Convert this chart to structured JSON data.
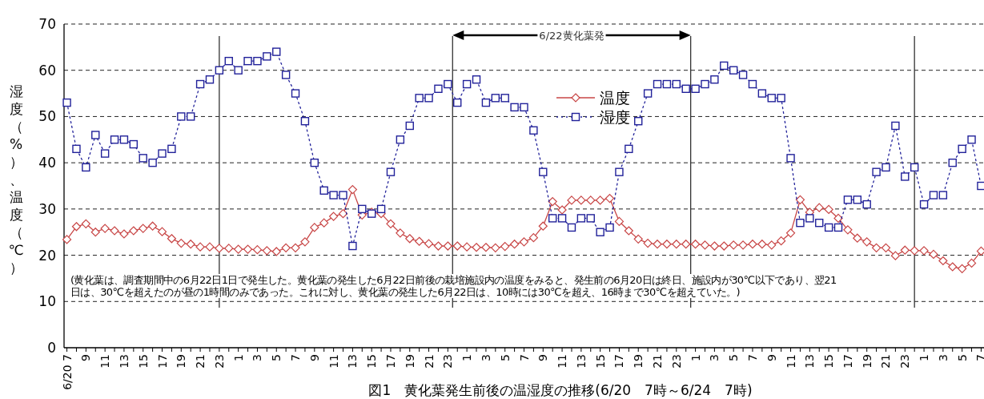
{
  "chart_data": {
    "type": "line",
    "title": "図1　黄化葉発生前後の温湿度の推移(6/20　7時～6/24　7時)",
    "ylabel": "湿度（%）、温度（℃）",
    "x": [
      "--06-20T07:00",
      "--06-20T08:00",
      "--06-20T09:00",
      "--06-20T10:00",
      "--06-20T11:00",
      "--06-20T12:00",
      "--06-20T13:00",
      "--06-20T14:00",
      "--06-20T15:00",
      "--06-20T16:00",
      "--06-20T17:00",
      "--06-20T18:00",
      "--06-20T19:00",
      "--06-20T20:00",
      "--06-20T21:00",
      "--06-20T22:00",
      "--06-20T23:00",
      "--06-21T00:00",
      "--06-21T01:00",
      "--06-21T02:00",
      "--06-21T03:00",
      "--06-21T04:00",
      "--06-21T05:00",
      "--06-21T06:00",
      "--06-21T07:00",
      "--06-21T08:00",
      "--06-21T09:00",
      "--06-21T10:00",
      "--06-21T11:00",
      "--06-21T12:00",
      "--06-21T13:00",
      "--06-21T14:00",
      "--06-21T15:00",
      "--06-21T16:00",
      "--06-21T17:00",
      "--06-21T18:00",
      "--06-21T19:00",
      "--06-21T20:00",
      "--06-21T21:00",
      "--06-21T22:00",
      "--06-21T23:00",
      "--06-22T00:00",
      "--06-22T01:00",
      "--06-22T02:00",
      "--06-22T03:00",
      "--06-22T04:00",
      "--06-22T05:00",
      "--06-22T06:00",
      "--06-22T07:00",
      "--06-22T08:00",
      "--06-22T09:00",
      "--06-22T10:00",
      "--06-22T11:00",
      "--06-22T12:00",
      "--06-22T13:00",
      "--06-22T14:00",
      "--06-22T15:00",
      "--06-22T16:00",
      "--06-22T17:00",
      "--06-22T18:00",
      "--06-22T19:00",
      "--06-22T20:00",
      "--06-22T21:00",
      "--06-22T22:00",
      "--06-22T23:00",
      "--06-23T00:00",
      "--06-23T01:00",
      "--06-23T02:00",
      "--06-23T03:00",
      "--06-23T04:00",
      "--06-23T05:00",
      "--06-23T06:00",
      "--06-23T07:00",
      "--06-23T08:00",
      "--06-23T09:00",
      "--06-23T10:00",
      "--06-23T11:00",
      "--06-23T12:00",
      "--06-23T13:00",
      "--06-23T14:00",
      "--06-23T15:00",
      "--06-23T16:00",
      "--06-23T17:00",
      "--06-23T18:00",
      "--06-23T19:00",
      "--06-23T20:00",
      "--06-23T21:00",
      "--06-23T22:00",
      "--06-23T23:00",
      "--06-24T00:00",
      "--06-24T01:00",
      "--06-24T02:00",
      "--06-24T03:00",
      "--06-24T04:00",
      "--06-24T05:00",
      "--06-24T06:00",
      "--06-24T07:00"
    ],
    "series": [
      {
        "name": "温度",
        "color": "#c84646",
        "marker": "diamond",
        "line_style": "solid",
        "values": [
          23.4,
          26.2,
          26.8,
          25.0,
          25.8,
          25.3,
          24.6,
          25.3,
          25.8,
          26.3,
          25.1,
          23.6,
          22.6,
          22.4,
          21.8,
          21.8,
          21.5,
          21.5,
          21.3,
          21.3,
          21.2,
          21.0,
          20.8,
          21.6,
          21.6,
          22.9,
          26.0,
          27.0,
          28.4,
          29.0,
          34.2,
          28.7,
          29.3,
          29.0,
          26.8,
          24.8,
          23.6,
          23.0,
          22.5,
          22.0,
          22.0,
          22.0,
          21.8,
          21.7,
          21.7,
          21.6,
          21.9,
          22.4,
          22.9,
          23.8,
          26.3,
          31.6,
          29.8,
          31.9,
          31.9,
          31.9,
          31.9,
          32.3,
          27.3,
          25.3,
          23.5,
          22.6,
          22.4,
          22.4,
          22.4,
          22.4,
          22.4,
          22.2,
          22.0,
          22.0,
          22.2,
          22.2,
          22.4,
          22.4,
          22.2,
          23.1,
          24.8,
          32.0,
          29.3,
          30.3,
          29.9,
          28.0,
          25.5,
          23.7,
          22.9,
          21.6,
          21.6,
          19.9,
          21.1,
          21.0,
          21.0,
          20.2,
          18.8,
          17.5,
          17.1,
          18.3,
          20.9
        ]
      },
      {
        "name": "湿度",
        "color": "#22229a",
        "marker": "square",
        "line_style": "dotted",
        "values": [
          53,
          43,
          39,
          46,
          42,
          45,
          45,
          44,
          41,
          40,
          42,
          43,
          50,
          50,
          57,
          58,
          60,
          62,
          60,
          62,
          62,
          63,
          64,
          59,
          55,
          49,
          40,
          34,
          33,
          33,
          22,
          30,
          29,
          30,
          38,
          45,
          48,
          54,
          54,
          56,
          57,
          53,
          57,
          58,
          53,
          54,
          54,
          52,
          52,
          47,
          38,
          28,
          28,
          26,
          28,
          28,
          25,
          26,
          38,
          43,
          49,
          55,
          57,
          57,
          57,
          56,
          56,
          57,
          58,
          61,
          60,
          59,
          57,
          55,
          54,
          54,
          41,
          27,
          28,
          27,
          26,
          26,
          32,
          32,
          31,
          38,
          39,
          48,
          37,
          39,
          31,
          33,
          33,
          40,
          43,
          45,
          35
        ]
      }
    ],
    "xlim": [
      "--06-20T06:42",
      "--06-24T07:18"
    ],
    "xticks": [
      {
        "value": "--06-20T07:00",
        "label": "6/20 7"
      },
      {
        "value": "--06-20T08:00",
        "label": null
      },
      {
        "value": "--06-20T09:00",
        "label": "9"
      },
      {
        "value": "--06-20T10:00",
        "label": null
      },
      {
        "value": "--06-20T11:00",
        "label": "11"
      },
      {
        "value": "--06-20T12:00",
        "label": null
      },
      {
        "value": "--06-20T13:00",
        "label": "13"
      },
      {
        "value": "--06-20T14:00",
        "label": null
      },
      {
        "value": "--06-20T15:00",
        "label": "15"
      },
      {
        "value": "--06-20T16:00",
        "label": null
      },
      {
        "value": "--06-20T17:00",
        "label": "17"
      },
      {
        "value": "--06-20T18:00",
        "label": null
      },
      {
        "value": "--06-20T19:00",
        "label": "19"
      },
      {
        "value": "--06-20T20:00",
        "label": null
      },
      {
        "value": "--06-20T21:00",
        "label": "21"
      },
      {
        "value": "--06-20T22:00",
        "label": null
      },
      {
        "value": "--06-20T23:00",
        "label": "23"
      },
      {
        "value": "--06-21T00:00",
        "label": null
      },
      {
        "value": "--06-21T01:00",
        "label": "1"
      },
      {
        "value": "--06-21T02:00",
        "label": null
      },
      {
        "value": "--06-21T03:00",
        "label": "3"
      },
      {
        "value": "--06-21T04:00",
        "label": null
      },
      {
        "value": "--06-21T05:00",
        "label": "5"
      },
      {
        "value": "--06-21T06:00",
        "label": null
      },
      {
        "value": "--06-21T07:00",
        "label": "7"
      },
      {
        "value": "--06-21T08:00",
        "label": null
      },
      {
        "value": "--06-21T09:00",
        "label": "9"
      },
      {
        "value": "--06-21T10:00",
        "label": null
      },
      {
        "value": "--06-21T11:00",
        "label": "11"
      },
      {
        "value": "--06-21T12:00",
        "label": null
      },
      {
        "value": "--06-21T13:00",
        "label": "13"
      },
      {
        "value": "--06-21T14:00",
        "label": null
      },
      {
        "value": "--06-21T15:00",
        "label": "15"
      },
      {
        "value": "--06-21T16:00",
        "label": null
      },
      {
        "value": "--06-21T17:00",
        "label": "17"
      },
      {
        "value": "--06-21T18:00",
        "label": null
      },
      {
        "value": "--06-21T19:00",
        "label": "19"
      },
      {
        "value": "--06-21T20:00",
        "label": null
      },
      {
        "value": "--06-21T21:00",
        "label": "21"
      },
      {
        "value": "--06-21T22:00",
        "label": null
      },
      {
        "value": "--06-21T23:00",
        "label": "23"
      },
      {
        "value": "--06-22T00:00",
        "label": null
      },
      {
        "value": "--06-22T01:00",
        "label": "1"
      },
      {
        "value": "--06-22T02:00",
        "label": null
      },
      {
        "value": "--06-22T03:00",
        "label": "3"
      },
      {
        "value": "--06-22T04:00",
        "label": null
      },
      {
        "value": "--06-22T05:00",
        "label": "5"
      },
      {
        "value": "--06-22T06:00",
        "label": null
      },
      {
        "value": "--06-22T07:00",
        "label": "7"
      },
      {
        "value": "--06-22T08:00",
        "label": null
      },
      {
        "value": "--06-22T09:00",
        "label": "9"
      },
      {
        "value": "--06-22T10:00",
        "label": null
      },
      {
        "value": "--06-22T11:00",
        "label": "11"
      },
      {
        "value": "--06-22T12:00",
        "label": null
      },
      {
        "value": "--06-22T13:00",
        "label": "13"
      },
      {
        "value": "--06-22T14:00",
        "label": null
      },
      {
        "value": "--06-22T15:00",
        "label": "15"
      },
      {
        "value": "--06-22T16:00",
        "label": null
      },
      {
        "value": "--06-22T17:00",
        "label": "17"
      },
      {
        "value": "--06-22T18:00",
        "label": null
      },
      {
        "value": "--06-22T19:00",
        "label": "19"
      },
      {
        "value": "--06-22T20:00",
        "label": null
      },
      {
        "value": "--06-22T21:00",
        "label": "21"
      },
      {
        "value": "--06-22T22:00",
        "label": null
      },
      {
        "value": "--06-22T23:00",
        "label": "23"
      },
      {
        "value": "--06-23T00:00",
        "label": null
      },
      {
        "value": "--06-23T01:00",
        "label": "1"
      },
      {
        "value": "--06-23T02:00",
        "label": null
      },
      {
        "value": "--06-23T03:00",
        "label": "3"
      },
      {
        "value": "--06-23T04:00",
        "label": null
      },
      {
        "value": "--06-23T05:00",
        "label": "5"
      },
      {
        "value": "--06-23T06:00",
        "label": null
      },
      {
        "value": "--06-23T07:00",
        "label": "7"
      },
      {
        "value": "--06-23T08:00",
        "label": null
      },
      {
        "value": "--06-23T09:00",
        "label": "9"
      },
      {
        "value": "--06-23T10:00",
        "label": null
      },
      {
        "value": "--06-23T11:00",
        "label": "11"
      },
      {
        "value": "--06-23T12:00",
        "label": null
      },
      {
        "value": "--06-23T13:00",
        "label": "13"
      },
      {
        "value": "--06-23T14:00",
        "label": null
      },
      {
        "value": "--06-23T15:00",
        "label": "15"
      },
      {
        "value": "--06-23T16:00",
        "label": null
      },
      {
        "value": "--06-23T17:00",
        "label": "17"
      },
      {
        "value": "--06-23T18:00",
        "label": null
      },
      {
        "value": "--06-23T19:00",
        "label": "19"
      },
      {
        "value": "--06-23T20:00",
        "label": null
      },
      {
        "value": "--06-23T21:00",
        "label": "21"
      },
      {
        "value": "--06-23T22:00",
        "label": null
      },
      {
        "value": "--06-23T23:00",
        "label": "23"
      },
      {
        "value": "--06-24T00:00",
        "label": null
      },
      {
        "value": "--06-24T01:00",
        "label": "1"
      },
      {
        "value": "--06-24T02:00",
        "label": null
      },
      {
        "value": "--06-24T03:00",
        "label": "3"
      },
      {
        "value": "--06-24T04:00",
        "label": null
      },
      {
        "value": "--06-24T05:00",
        "label": "5"
      },
      {
        "value": "--06-24T06:00",
        "label": null
      },
      {
        "value": "--06-24T07:00",
        "label": "7"
      }
    ],
    "ylim": [
      0,
      70
    ],
    "yticks": [
      0,
      10,
      20,
      30,
      40,
      50,
      60,
      70
    ],
    "grid": "y",
    "legend": "top",
    "ref_lines": [
      {
        "axis": "x",
        "value": "--06-20T23:00",
        "color": "#333333"
      },
      {
        "axis": "x",
        "value": "--06-21T23:30",
        "color": "#333333"
      },
      {
        "axis": "x",
        "value": "--06-23T00:30",
        "color": "#333333"
      },
      {
        "axis": "x",
        "value": "--06-24T00:00",
        "color": "#333333"
      }
    ],
    "annotations": [
      "6/22黄化葉発",
      "(黄化葉は、調査期間中の6月22日1日で発生した。黄化葉の発生した6月22日前後の栽培施設内の温度をみると、発生前の6月20日は終日、施設内が30℃以下であり、翌21日は、30℃を超えたのが昼の1時間のみであった。これに対し、黄化葉の発生した6月22日は、10時には30℃を超え、16時まで30℃を超えていた。)"
    ]
  }
}
